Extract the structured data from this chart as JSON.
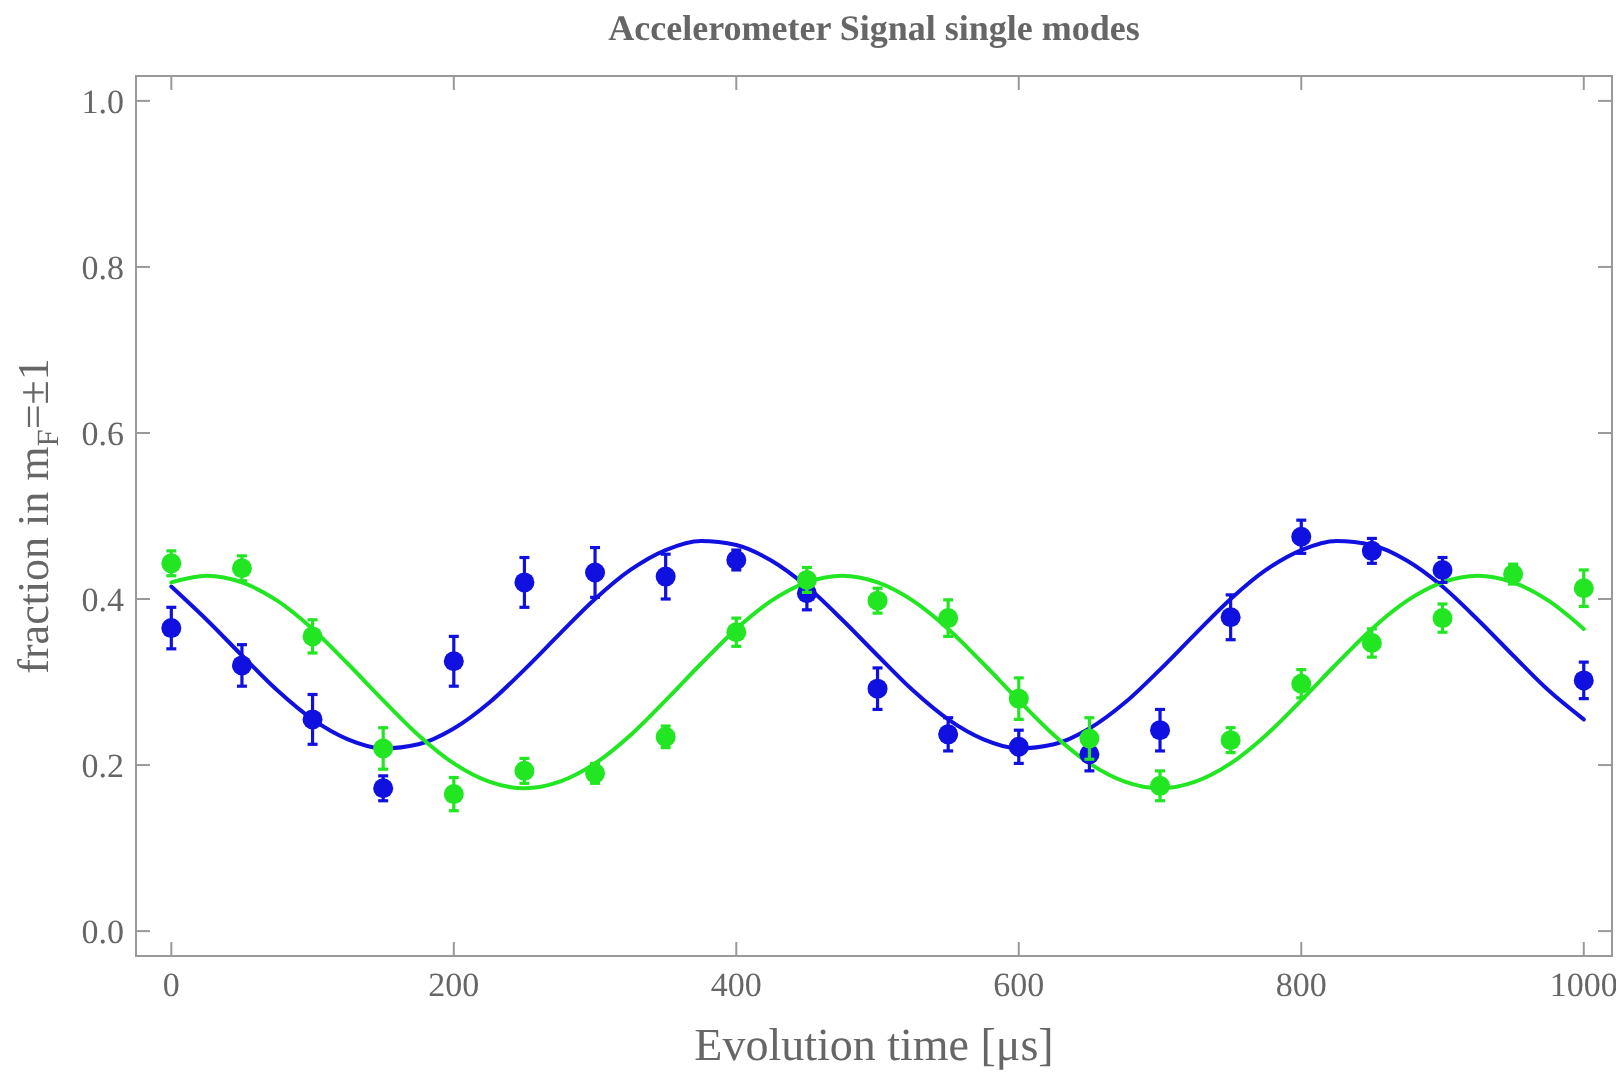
{
  "chart_data": {
    "type": "scatter",
    "title": "Accelerometer Signal single modes",
    "xlabel": "Evolution time [μs]",
    "ylabel": "fraction in m$_{F}$=±1",
    "xlim": [
      -25,
      1020
    ],
    "ylim": [
      -0.03,
      1.03
    ],
    "xticks": [
      0,
      200,
      400,
      600,
      800,
      1000
    ],
    "yticks": [
      {
        "value": 0,
        "label": "0.0"
      },
      {
        "value": 0.2,
        "label": "0.2"
      },
      {
        "value": 0.4,
        "label": "0.4"
      },
      {
        "value": 0.6,
        "label": "0.6"
      },
      {
        "value": 0.8,
        "label": "0.8"
      },
      {
        "value": 1,
        "label": "1.0"
      }
    ],
    "grid": false,
    "marker": "circle",
    "x": [
      0,
      50,
      100,
      150,
      200,
      250,
      300,
      350,
      400,
      450,
      500,
      550,
      600,
      650,
      700,
      750,
      800,
      850,
      900,
      950,
      1000
    ],
    "series": [
      {
        "type": "line",
        "color": "#1010e0",
        "marker": "none",
        "x": [
          0,
          25,
          50,
          75,
          100,
          125,
          150,
          175,
          200,
          225,
          250,
          275,
          300,
          325,
          350,
          375,
          400,
          425,
          450,
          475,
          500,
          525,
          550,
          575,
          600,
          625,
          650,
          675,
          700,
          725,
          750,
          775,
          800,
          825,
          850,
          875,
          900,
          925,
          950,
          975,
          1000
        ],
        "values": [
          0.415,
          0.375,
          0.332,
          0.29,
          0.255,
          0.231,
          0.22,
          0.225,
          0.244,
          0.275,
          0.315,
          0.358,
          0.4,
          0.435,
          0.459,
          0.47,
          0.465,
          0.446,
          0.415,
          0.375,
          0.332,
          0.29,
          0.255,
          0.231,
          0.22,
          0.225,
          0.244,
          0.275,
          0.315,
          0.358,
          0.4,
          0.435,
          0.459,
          0.47,
          0.465,
          0.446,
          0.415,
          0.375,
          0.332,
          0.29,
          0.255
        ]
      },
      {
        "type": "line",
        "color": "#22e622",
        "marker": "none",
        "x": [
          0,
          25,
          50,
          75,
          100,
          125,
          150,
          175,
          200,
          225,
          250,
          275,
          300,
          325,
          350,
          375,
          400,
          425,
          450,
          475,
          500,
          525,
          550,
          575,
          600,
          625,
          650,
          675,
          700,
          725,
          750,
          775,
          800,
          825,
          850,
          875,
          900,
          925,
          950,
          975,
          1000
        ],
        "values": [
          0.42,
          0.428,
          0.42,
          0.398,
          0.364,
          0.322,
          0.278,
          0.236,
          0.202,
          0.18,
          0.172,
          0.18,
          0.202,
          0.236,
          0.278,
          0.322,
          0.364,
          0.398,
          0.42,
          0.428,
          0.42,
          0.398,
          0.364,
          0.322,
          0.278,
          0.236,
          0.202,
          0.18,
          0.172,
          0.18,
          0.202,
          0.236,
          0.278,
          0.322,
          0.364,
          0.398,
          0.42,
          0.428,
          0.42,
          0.398,
          0.364
        ]
      },
      {
        "color": "#1010e0",
        "values": [
          0.365,
          0.32,
          0.255,
          0.172,
          0.325,
          0.42,
          0.432,
          0.427,
          0.447,
          0.407,
          0.292,
          0.237,
          0.222,
          0.213,
          0.242,
          0.378,
          0.475,
          0.458,
          0.435,
          null,
          0.302
        ],
        "errors": [
          0.025,
          0.025,
          0.03,
          0.015,
          0.03,
          0.03,
          0.03,
          0.027,
          0.012,
          0.02,
          0.025,
          0.02,
          0.02,
          0.02,
          0.025,
          0.027,
          0.02,
          0.015,
          0.015,
          null,
          0.022
        ]
      },
      {
        "color": "#22e622",
        "values": [
          0.443,
          0.437,
          0.355,
          0.22,
          0.165,
          0.193,
          0.19,
          0.234,
          0.36,
          0.423,
          0.398,
          0.377,
          0.28,
          0.232,
          0.175,
          0.23,
          0.298,
          0.347,
          0.377,
          0.43,
          0.413
        ],
        "errors": [
          0.015,
          0.015,
          0.02,
          0.025,
          0.02,
          0.015,
          0.012,
          0.013,
          0.017,
          0.015,
          0.015,
          0.022,
          0.025,
          0.025,
          0.018,
          0.015,
          0.017,
          0.017,
          0.017,
          0.012,
          0.022
        ]
      }
    ]
  }
}
